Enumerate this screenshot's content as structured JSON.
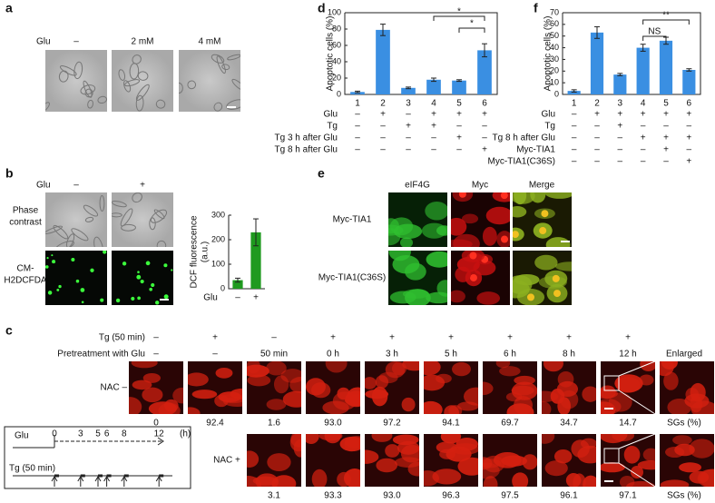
{
  "panels": {
    "a": {
      "label": "a",
      "treatment": "Glu",
      "conditions": [
        "–",
        "2 mM",
        "4 mM"
      ]
    },
    "b": {
      "label": "b",
      "treatment": "Glu",
      "conditions": [
        "–",
        "+"
      ],
      "row_labels": [
        [
          "Phase",
          "contrast"
        ],
        [
          "CM-",
          "H2DCFDA"
        ]
      ]
    },
    "c": {
      "label": "c",
      "rows": [
        {
          "name": "Tg (50 min)",
          "values": [
            "–",
            "+",
            "–",
            "+",
            "+",
            "+",
            "+",
            "+",
            "+"
          ]
        },
        {
          "name": "Pretreatment with Glu",
          "values": [
            "–",
            "–",
            "50 min",
            "0 h",
            "3 h",
            "5 h",
            "6 h",
            "8 h",
            "12 h"
          ]
        }
      ],
      "enlarged": "Enlarged",
      "nac_rows": [
        {
          "name": "NAC –",
          "values": [
            "0",
            "92.4",
            "1.6",
            "93.0",
            "97.2",
            "94.1",
            "69.7",
            "34.7",
            "14.7"
          ],
          "unit": "SGs (%)"
        },
        {
          "name": "NAC +",
          "values": [
            "3.1",
            "93.3",
            "93.0",
            "96.3",
            "97.5",
            "96.1",
            "97.1"
          ],
          "unit": "SGs (%)"
        }
      ],
      "timeline": {
        "glu": "Glu",
        "tg": "Tg (50 min)",
        "ticks": [
          0,
          3,
          5,
          6,
          8,
          12
        ],
        "unit": "(h)"
      }
    },
    "d": {
      "label": "d"
    },
    "e": {
      "label": "e",
      "columns": [
        "eIF4G",
        "Myc",
        "Merge"
      ],
      "rows": [
        "Myc-TIA1",
        "Myc-TIA1(C36S)"
      ]
    },
    "f": {
      "label": "f"
    }
  },
  "chart_data": [
    {
      "type": "bar",
      "ylabel": [
        "DCF fluorescence",
        "(a.u.)"
      ],
      "xlabel": "Glu",
      "categories": [
        "–",
        "+"
      ],
      "values": [
        35,
        230
      ],
      "errors": [
        8,
        55
      ],
      "color": "#1f9a1f",
      "ylim": [
        0,
        300
      ],
      "yticks": [
        0,
        100,
        200,
        300
      ]
    },
    {
      "type": "bar",
      "ylabel": [
        "Apoptotic cells (%)"
      ],
      "categories": [
        "1",
        "2",
        "3",
        "4",
        "5",
        "6"
      ],
      "values": [
        3,
        79,
        8,
        18,
        17,
        54
      ],
      "errors": [
        1,
        7,
        1,
        2,
        1,
        8
      ],
      "color": "#3a8fe2",
      "ylim": [
        0,
        100
      ],
      "yticks": [
        0,
        20,
        40,
        60,
        80,
        100
      ],
      "conditions": [
        {
          "name": "Glu",
          "values": [
            "–",
            "+",
            "–",
            "+",
            "+",
            "+"
          ]
        },
        {
          "name": "Tg",
          "values": [
            "–",
            "–",
            "+",
            "+",
            "–",
            "–"
          ]
        },
        {
          "name": "Tg 3 h after Glu",
          "values": [
            "–",
            "–",
            "–",
            "–",
            "+",
            "–"
          ]
        },
        {
          "name": "Tg 8 h after Glu",
          "values": [
            "–",
            "–",
            "–",
            "–",
            "–",
            "+"
          ]
        }
      ],
      "annotations": [
        "*",
        "*"
      ]
    },
    {
      "type": "bar",
      "ylabel": [
        "Apoptotic cells (%)"
      ],
      "categories": [
        "1",
        "2",
        "3",
        "4",
        "5",
        "6"
      ],
      "values": [
        3,
        53,
        17,
        40,
        46,
        21
      ],
      "errors": [
        1,
        5,
        1,
        3,
        3,
        1
      ],
      "color": "#3a8fe2",
      "ylim": [
        0,
        70
      ],
      "yticks": [
        0,
        10,
        20,
        30,
        40,
        50,
        60,
        70
      ],
      "conditions": [
        {
          "name": "Glu",
          "values": [
            "–",
            "+",
            "+",
            "+",
            "+",
            "+"
          ]
        },
        {
          "name": "Tg",
          "values": [
            "–",
            "–",
            "+",
            "–",
            "–",
            "–"
          ]
        },
        {
          "name": "Tg 8 h after Glu",
          "values": [
            "–",
            "–",
            "–",
            "+",
            "+",
            "+"
          ]
        },
        {
          "name": "Myc-TIA1",
          "values": [
            "–",
            "–",
            "–",
            "–",
            "+",
            "–"
          ]
        },
        {
          "name": "Myc-TIA1(C36S)",
          "values": [
            "–",
            "–",
            "–",
            "–",
            "–",
            "+"
          ]
        }
      ],
      "annotations": [
        "NS",
        "**"
      ]
    }
  ]
}
